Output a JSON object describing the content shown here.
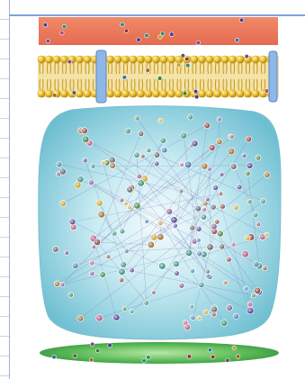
{
  "diagram": {
    "layers": [
      {
        "name": "extracellular-layer",
        "color": "#ee7a5c"
      },
      {
        "name": "membrane-bilayer",
        "color": "#d9a821"
      },
      {
        "name": "cytoplasm-network",
        "color": "#8fd0de"
      },
      {
        "name": "nucleus-layer",
        "color": "#3fa84a"
      }
    ],
    "colors": {
      "accent_line": "#7f9fe0",
      "transmembrane": "#8fb7e6",
      "edge": "#6a6fb0",
      "node_palette": [
        "#4b3b8f",
        "#3f7d3a",
        "#7a4a8c",
        "#c6a02a",
        "#3a6fa8",
        "#8a3a3a",
        "#2f8a7a",
        "#9a6a2a",
        "#5a5a5a",
        "#b64a7a"
      ]
    }
  }
}
